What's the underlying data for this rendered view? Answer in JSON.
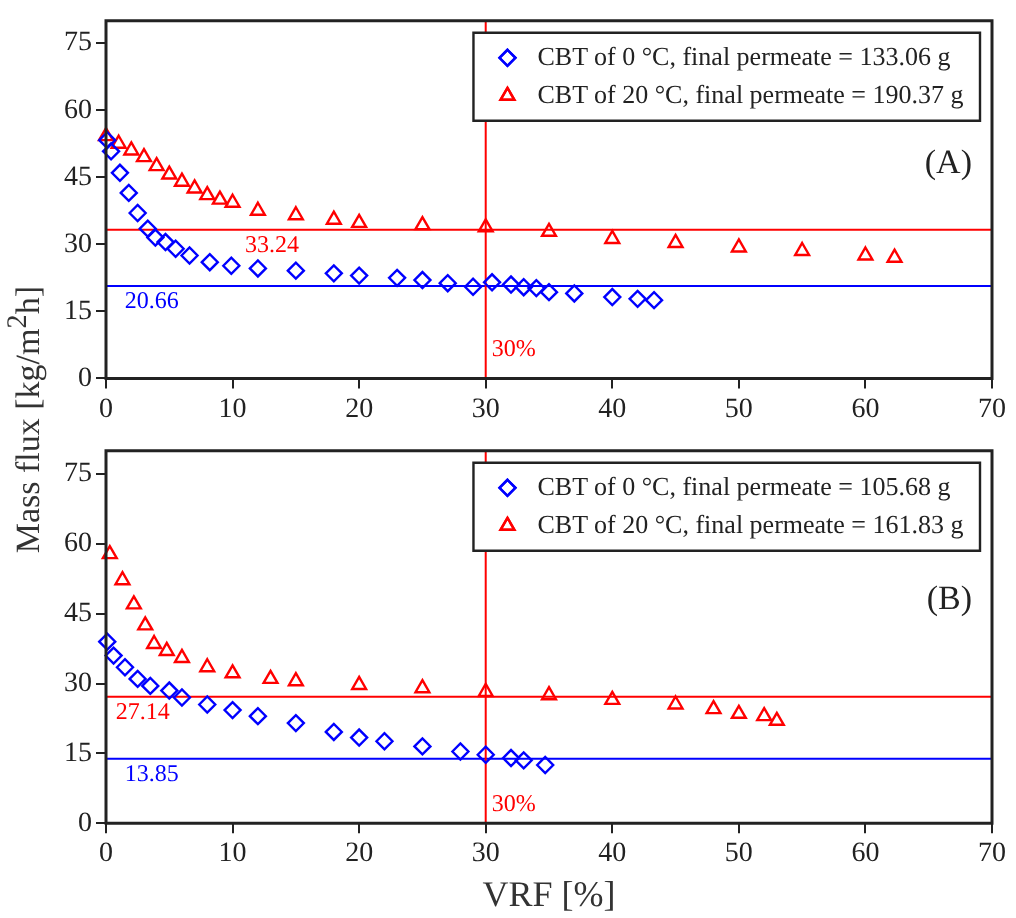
{
  "chart_data": [
    {
      "type": "scatter",
      "xlim": [
        0,
        70
      ],
      "xticks": [
        0,
        10,
        20,
        30,
        40,
        50,
        60,
        70
      ],
      "ylim": [
        0,
        80
      ],
      "yticks": [
        0,
        15,
        30,
        45,
        60,
        75
      ],
      "legend": "top right",
      "series": [
        {
          "name": "CBT of 0 °C, final permeate = 133.06 g",
          "color": "#0000ff",
          "marker": "diamond",
          "x": [
            0.1,
            0.4,
            1.1,
            1.8,
            2.5,
            3.3,
            3.9,
            4.7,
            5.5,
            6.6,
            8.2,
            9.9,
            12,
            15,
            18,
            20,
            23,
            25,
            27,
            29,
            30.5,
            32,
            33,
            34,
            35,
            37,
            40,
            42,
            43.3
          ],
          "values": [
            53.3,
            50.8,
            46,
            41.5,
            37,
            33.5,
            31.5,
            30.5,
            29,
            27.5,
            26,
            25.2,
            24.6,
            24.1,
            23.5,
            23,
            22.5,
            22,
            21.3,
            20.5,
            21.5,
            21,
            20.4,
            20.2,
            19.3,
            19,
            18.2,
            17.8,
            17.5
          ]
        },
        {
          "name": "CBT of 20 °C, final permeate = 190.37 g",
          "color": "#ff0000",
          "marker": "triangle",
          "x": [
            0,
            1,
            2,
            3,
            4,
            5,
            6,
            7,
            8,
            9,
            10,
            12,
            15,
            18,
            20,
            25,
            30,
            35,
            40,
            45,
            50,
            55,
            60,
            62.3
          ],
          "values": [
            54.2,
            52.5,
            51,
            49.5,
            47.5,
            45.6,
            44,
            42.5,
            41,
            40,
            39.3,
            37.5,
            36.5,
            35.5,
            34.8,
            34.3,
            33.8,
            32.8,
            31.2,
            30.3,
            29.3,
            28.5,
            27.5,
            27
          ]
        }
      ],
      "ref_lines": [
        {
          "axis": "y",
          "value": 33.24,
          "color": "#ff0000"
        },
        {
          "axis": "y",
          "value": 20.66,
          "color": "#0000ff"
        },
        {
          "axis": "x",
          "value": 30,
          "color": "#ff0000"
        }
      ],
      "annotations": [
        "(A)",
        {
          "text": "33.24",
          "x": 10.5,
          "y": 33.24
        },
        {
          "text": "20.66",
          "x": 1,
          "y": 20.66
        },
        {
          "text": "30%",
          "x": 30,
          "y": 10
        }
      ]
    },
    {
      "type": "scatter",
      "xlabel": "VRF [%]",
      "ylabel": "Mass flux [kg/m$^{2}$h]",
      "xlim": [
        0,
        70
      ],
      "xticks": [
        0,
        10,
        20,
        30,
        40,
        50,
        60,
        70
      ],
      "ylim": [
        0,
        80
      ],
      "yticks": [
        0,
        15,
        30,
        45,
        60,
        75
      ],
      "legend": "top right",
      "series": [
        {
          "name": "CBT of 0 °C, final permeate = 105.68 g",
          "color": "#0000ff",
          "marker": "diamond",
          "x": [
            0.1,
            0.6,
            1.5,
            2.5,
            3.5,
            5,
            6,
            8,
            10,
            12,
            15,
            18,
            20,
            22,
            25,
            28,
            30,
            32,
            33,
            34.7
          ],
          "values": [
            39,
            36,
            33.5,
            31,
            29.5,
            28.5,
            27,
            25.5,
            24.3,
            23,
            21.5,
            19.6,
            18.4,
            17.6,
            16.5,
            15.4,
            14.7,
            14,
            13.5,
            12.5
          ]
        },
        {
          "name": "CBT of 20 °C, final permeate = 161.83 g",
          "color": "#ff0000",
          "marker": "triangle",
          "x": [
            0.3,
            1.3,
            2.2,
            3.1,
            3.8,
            4.8,
            6,
            8,
            10,
            13,
            15,
            20,
            25,
            30,
            35,
            40,
            45,
            48,
            50,
            52,
            53
          ],
          "values": [
            57.8,
            52.2,
            47,
            42.5,
            38.5,
            37,
            35.5,
            33.5,
            32.2,
            31,
            30.5,
            29.7,
            29,
            28.2,
            27.5,
            26.5,
            25.5,
            24.5,
            23.5,
            23,
            22
          ]
        }
      ],
      "ref_lines": [
        {
          "axis": "y",
          "value": 27.14,
          "color": "#ff0000"
        },
        {
          "axis": "y",
          "value": 13.85,
          "color": "#0000ff"
        },
        {
          "axis": "x",
          "value": 30,
          "color": "#ff0000"
        }
      ],
      "annotations": [
        "(B)",
        {
          "text": "27.14",
          "x": 0.3,
          "y": 27.14
        },
        {
          "text": "13.85",
          "x": 1,
          "y": 13.85
        },
        {
          "text": "30%",
          "x": 30,
          "y": 7.5
        }
      ]
    }
  ]
}
